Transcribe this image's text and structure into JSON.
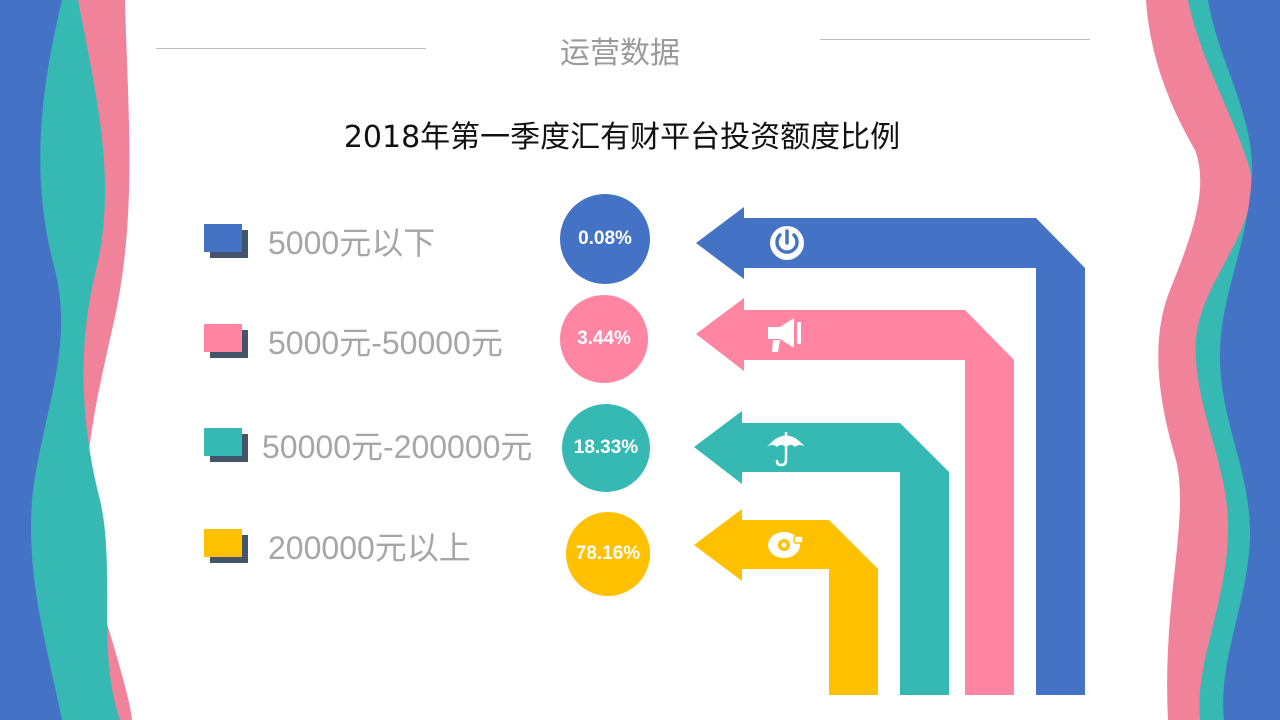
{
  "header": {
    "title": "运营数据"
  },
  "chart_data": {
    "type": "table",
    "title": "2018年第一季度汇有财平台投资额度比例",
    "categories": [
      "5000元以下",
      "5000元-50000元",
      "50000元-200000元",
      "200000元以上"
    ],
    "values": [
      0.08,
      3.44,
      18.33,
      78.16
    ],
    "value_labels": [
      "0.08%",
      "3.44%",
      "18.33%",
      "78.16%"
    ],
    "unit": "%",
    "colors": [
      "#4472c4",
      "#ff85a2",
      "#36b9b2",
      "#ffc000"
    ],
    "icons": [
      "power-icon",
      "megaphone-icon",
      "umbrella-icon",
      "disc-icon"
    ]
  }
}
